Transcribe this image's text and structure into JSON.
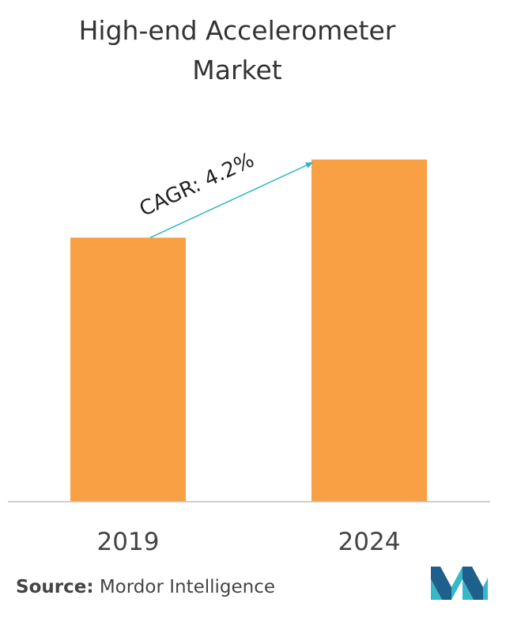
{
  "title_lines": [
    "High-end Accelerometer",
    "Market"
  ],
  "chart_data": {
    "type": "bar",
    "categories": [
      "2019",
      "2024"
    ],
    "values": [
      71,
      92
    ],
    "ylim": [
      0,
      100
    ],
    "grid": false,
    "annotation": "CAGR: 4.2%",
    "bar_color": "#F9A045",
    "arrow_color": "#2EB4C6"
  },
  "source": {
    "label": "Source:",
    "text": "Mordor Intelligence"
  },
  "logo": {
    "icon": "mordor-intelligence-logo-icon",
    "colors": [
      "#1F5F8B",
      "#38B7C8"
    ]
  }
}
